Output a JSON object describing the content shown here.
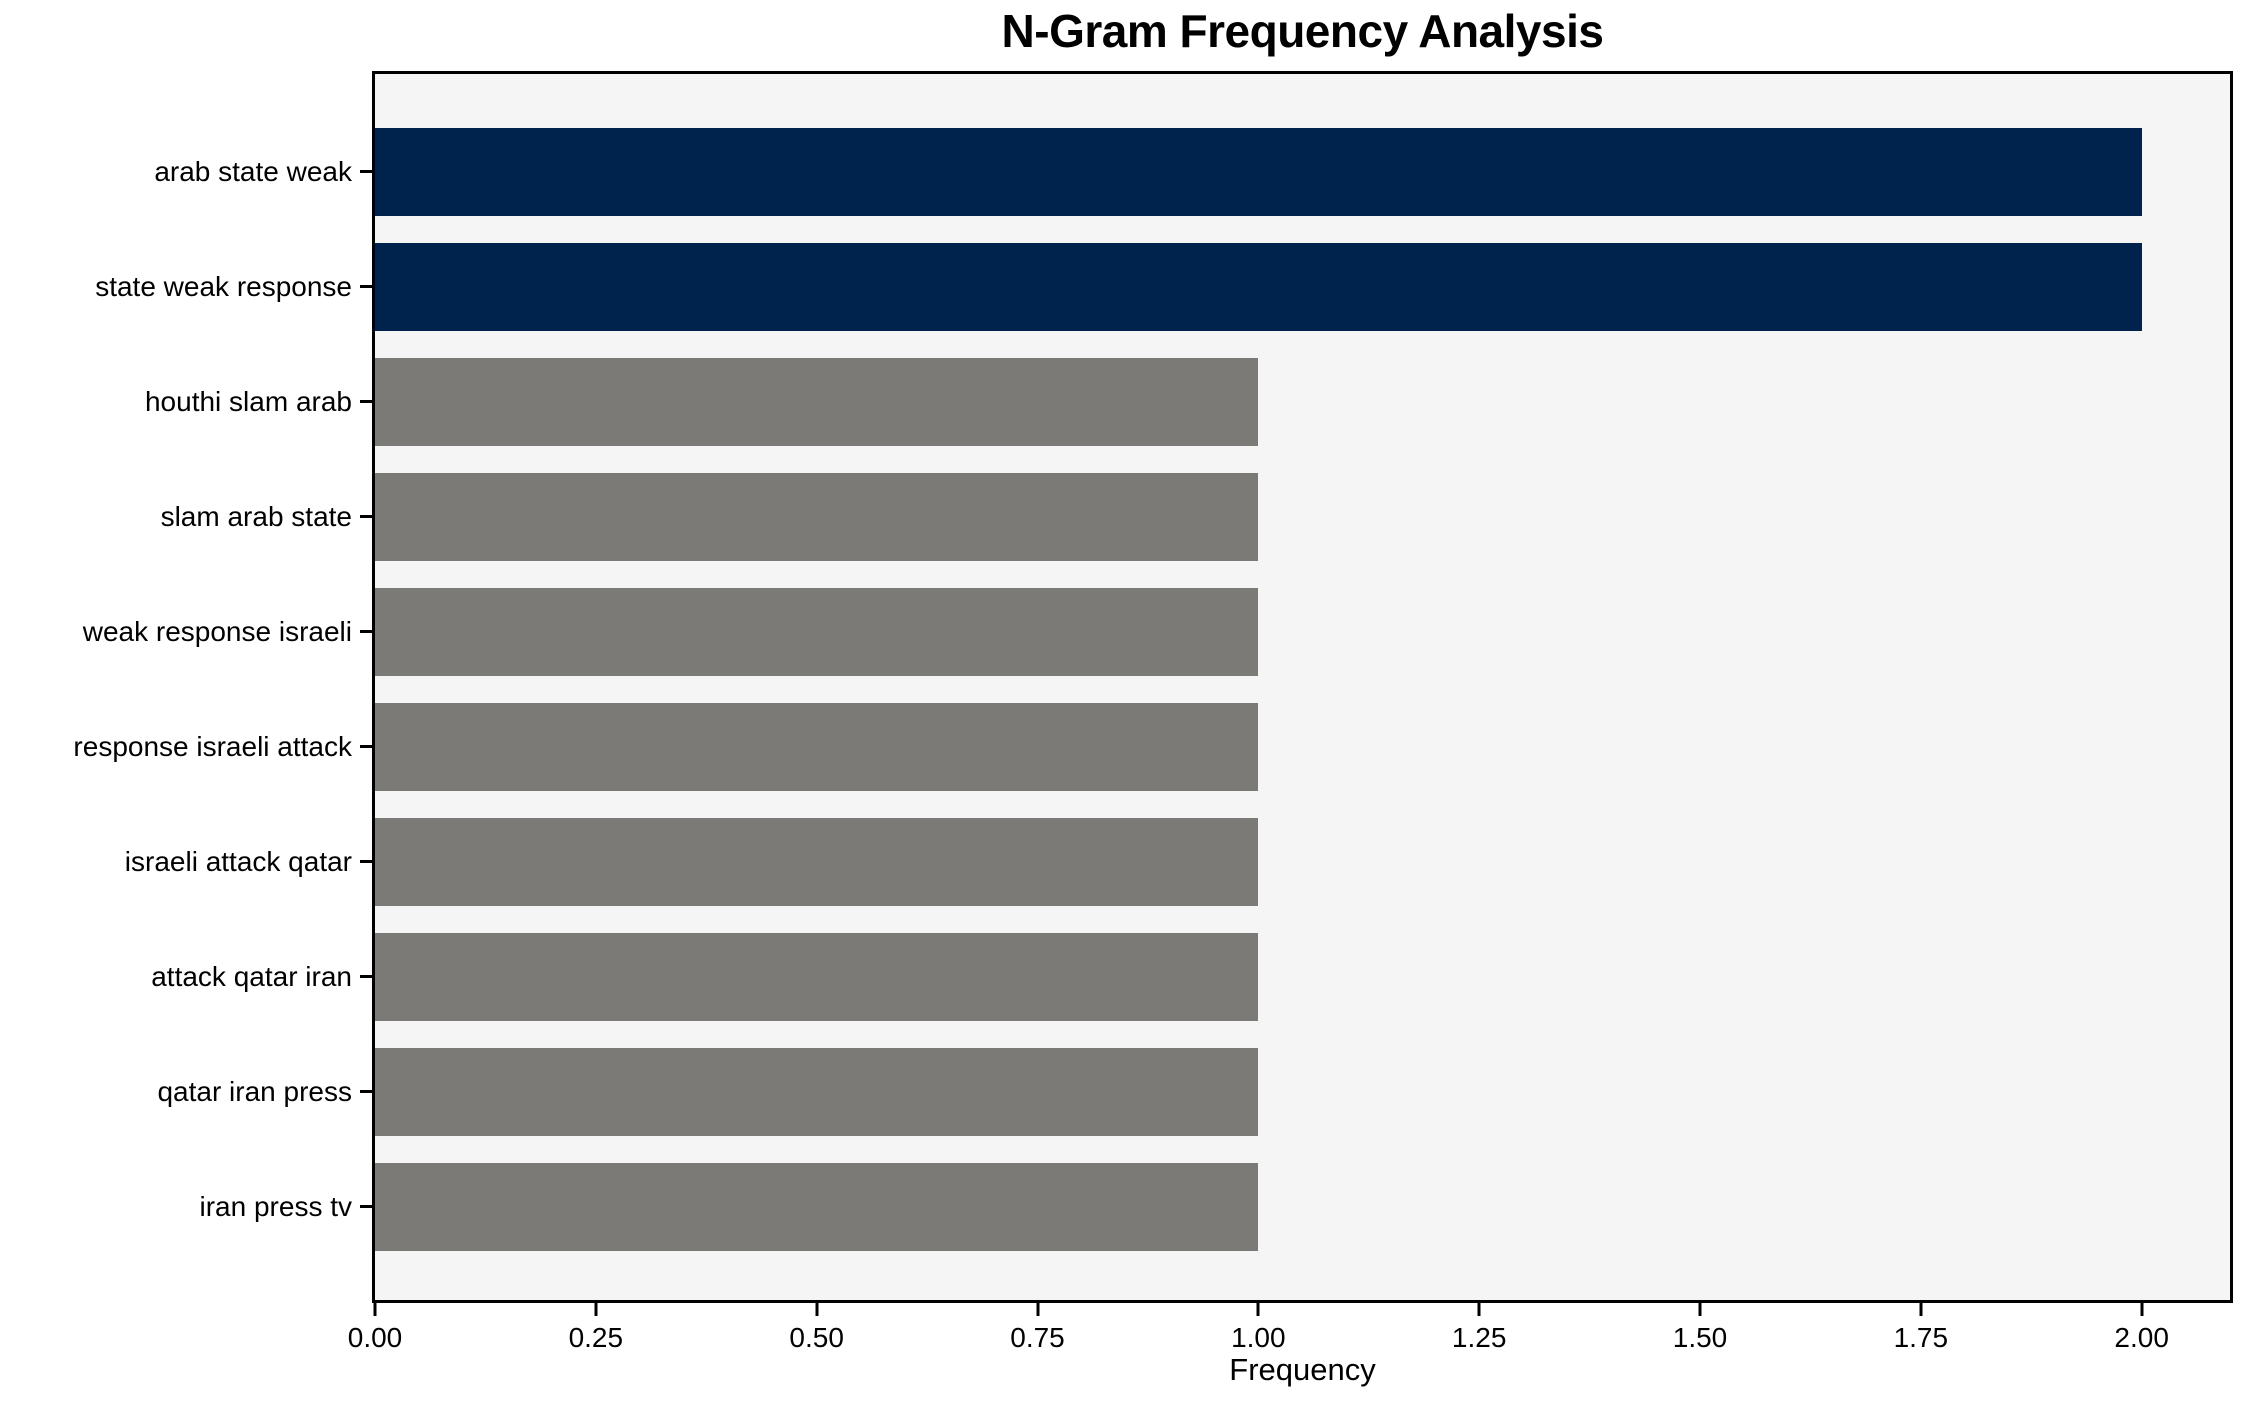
{
  "colors": {
    "highlight_bar": "#00234d",
    "default_bar": "#7b7a76",
    "plot_background": "#f6f5f6",
    "figure_background": "#ffffff",
    "spine": "#000000"
  },
  "chart_data": {
    "type": "bar",
    "orientation": "horizontal",
    "title": "N-Gram Frequency Analysis",
    "xlabel": "Frequency",
    "ylabel": "",
    "categories": [
      "arab state weak",
      "state weak response",
      "houthi slam arab",
      "slam arab state",
      "weak response israeli",
      "response israeli attack",
      "israeli attack qatar",
      "attack qatar iran",
      "qatar iran press",
      "iran press tv"
    ],
    "values": [
      2,
      2,
      1,
      1,
      1,
      1,
      1,
      1,
      1,
      1
    ],
    "bar_colors": [
      "#00234d",
      "#00234d",
      "#7b7a76",
      "#7b7a76",
      "#7b7a76",
      "#7b7a76",
      "#7b7a76",
      "#7b7a76",
      "#7b7a76",
      "#7b7a76"
    ],
    "xlim": [
      0,
      2.1
    ],
    "xticks": [
      0,
      0.25,
      0.5,
      0.75,
      1.0,
      1.25,
      1.5,
      1.75,
      2.0
    ],
    "xtick_labels": [
      "0.00",
      "0.25",
      "0.50",
      "0.75",
      "1.00",
      "1.25",
      "1.50",
      "1.75",
      "2.00"
    ],
    "grid": false,
    "legend": null
  }
}
